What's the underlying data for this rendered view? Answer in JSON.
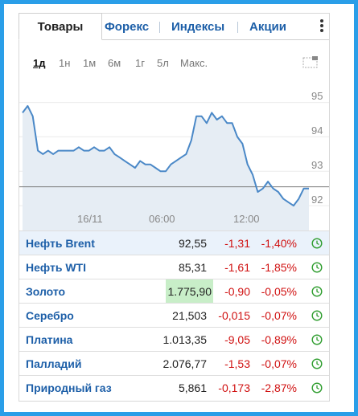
{
  "tabs": [
    {
      "label": "Товары",
      "active": true
    },
    {
      "label": "Форекс",
      "active": false
    },
    {
      "label": "Индексы",
      "active": false
    },
    {
      "label": "Акции",
      "active": false
    }
  ],
  "periods": [
    "1д",
    "1н",
    "1м",
    "6м",
    "1г",
    "5л",
    "Макс."
  ],
  "active_period": "1д",
  "chart_data": {
    "type": "area",
    "x_ticks": [
      "16/11",
      "06:00",
      "12:00"
    ],
    "y_ticks": [
      "95",
      "94",
      "93",
      "92"
    ],
    "ylim": [
      91.7,
      95.2
    ],
    "reference_line": 92.55,
    "grid": "horizontal",
    "series": [
      {
        "values": [
          94.7,
          94.9,
          94.6,
          93.6,
          93.5,
          93.6,
          93.5,
          93.6,
          93.6,
          93.6,
          93.6,
          93.7,
          93.6,
          93.6,
          93.7,
          93.6,
          93.6,
          93.7,
          93.5,
          93.4,
          93.3,
          93.2,
          93.1,
          93.3,
          93.2,
          93.2,
          93.1,
          93.0,
          93.0,
          93.2,
          93.3,
          93.4,
          93.5,
          93.9,
          94.6,
          94.6,
          94.4,
          94.7,
          94.5,
          94.6,
          94.4,
          94.4,
          94.0,
          93.8,
          93.2,
          92.9,
          92.4,
          92.5,
          92.7,
          92.5,
          92.4,
          92.2,
          92.1,
          92.0,
          92.2,
          92.5,
          92.5
        ]
      }
    ],
    "line_color": "#4a88c7",
    "fill_color": "#e6edf4",
    "reference_color": "#777777"
  },
  "rows": [
    {
      "name": "Нефть Brent",
      "price": "92,55",
      "change": "-1,31",
      "percent": "-1,40%",
      "selected": true,
      "highlight": false
    },
    {
      "name": "Нефть WTI",
      "price": "85,31",
      "change": "-1,61",
      "percent": "-1,85%",
      "selected": false,
      "highlight": false
    },
    {
      "name": "Золото",
      "price": "1.775,90",
      "change": "-0,90",
      "percent": "-0,05%",
      "selected": false,
      "highlight": true
    },
    {
      "name": "Серебро",
      "price": "21,503",
      "change": "-0,015",
      "percent": "-0,07%",
      "selected": false,
      "highlight": false
    },
    {
      "name": "Платина",
      "price": "1.013,35",
      "change": "-9,05",
      "percent": "-0,89%",
      "selected": false,
      "highlight": false
    },
    {
      "name": "Палладий",
      "price": "2.076,77",
      "change": "-1,53",
      "percent": "-0,07%",
      "selected": false,
      "highlight": false
    },
    {
      "name": "Природный газ",
      "price": "5,861",
      "change": "-0,173",
      "percent": "-2,87%",
      "selected": false,
      "highlight": false
    }
  ],
  "colors": {
    "accent_border": "#2a9ee8",
    "link": "#1d5fa8",
    "negative": "#d01010",
    "market_open_icon": "#2e9d2e"
  },
  "icons": {
    "menu": "kebab-menu-icon",
    "fullscreen": "expand-chart-icon",
    "market_status": "clock-icon"
  }
}
